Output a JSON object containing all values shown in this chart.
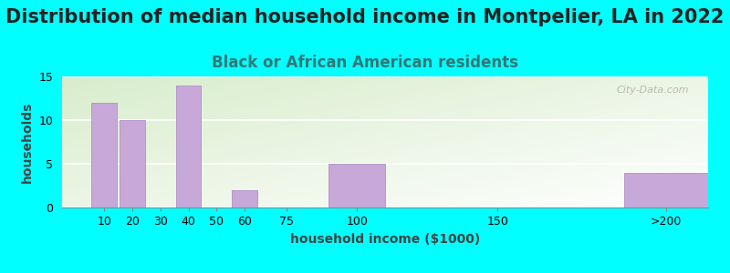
{
  "title": "Distribution of median household income in Montpelier, LA in 2022",
  "subtitle": "Black or African American residents",
  "xlabel": "household income ($1000)",
  "ylabel": "households",
  "background_color": "#00FFFF",
  "plot_bg_color_topleft": "#d8edcc",
  "plot_bg_color_bottomright": "#ffffff",
  "bar_color": "#c8a8d8",
  "bar_edge_color": "#b090c8",
  "categories": [
    "10",
    "20",
    "30",
    "40",
    "50",
    "60",
    "75",
    "100",
    "150",
    ">200"
  ],
  "values": [
    12,
    10,
    0,
    14,
    0,
    2,
    0,
    5,
    0,
    4
  ],
  "xlim_left": -5,
  "xlim_right": 225,
  "bar_centers": [
    10,
    20,
    30,
    40,
    50,
    60,
    75,
    100,
    150,
    210
  ],
  "bar_widths": [
    9,
    9,
    9,
    9,
    9,
    9,
    9,
    20,
    30,
    30
  ],
  "tick_positions": [
    10,
    20,
    30,
    40,
    50,
    60,
    75,
    100,
    150,
    210
  ],
  "tick_labels": [
    "10",
    "20",
    "30",
    "40",
    "50",
    "60",
    "75",
    "100",
    "150",
    ">200"
  ],
  "ylim": [
    0,
    15
  ],
  "yticks": [
    0,
    5,
    10,
    15
  ],
  "title_fontsize": 15,
  "subtitle_fontsize": 12,
  "axis_label_fontsize": 10,
  "tick_fontsize": 9,
  "watermark_text": "City-Data.com"
}
